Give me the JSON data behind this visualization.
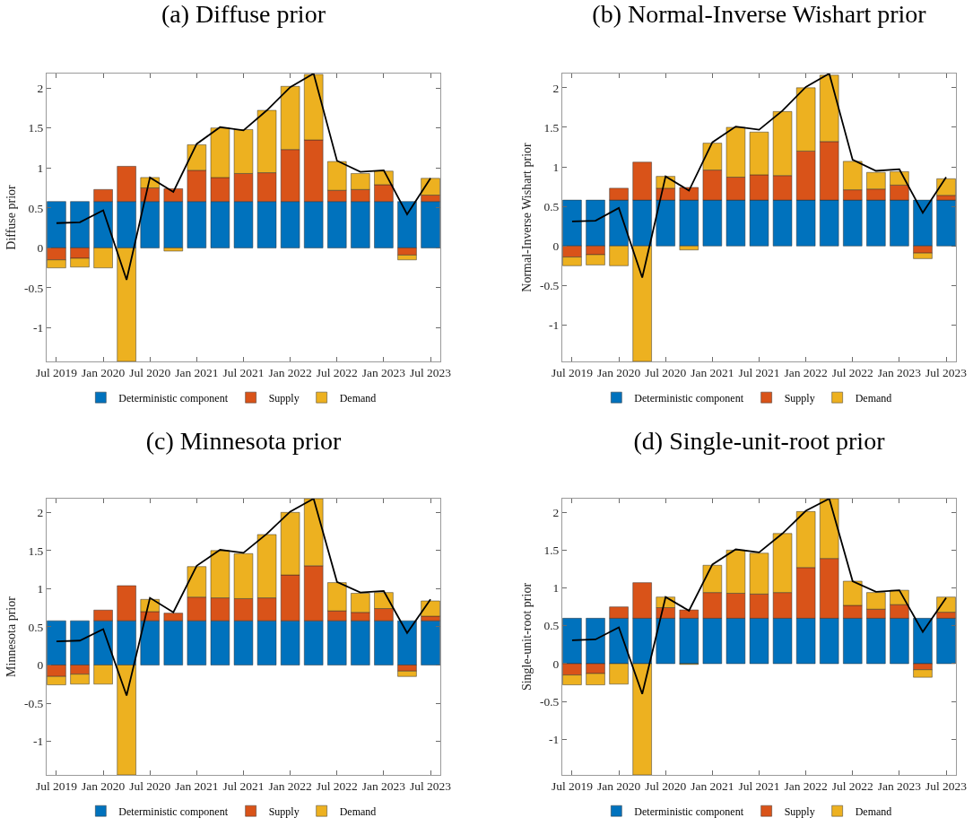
{
  "chart_data": [
    {
      "type": "bar",
      "title": "(a) Diffuse prior",
      "ylabel": "Diffuse prior",
      "categories": [
        "Jul 2019",
        null,
        "Jan 2020",
        null,
        "Jul 2020",
        null,
        "Jan 2021",
        null,
        "Jul 2021",
        null,
        "Jan 2022",
        null,
        "Jul 2022",
        null,
        "Jan 2023",
        null,
        "Jul 2023"
      ],
      "stacked": true,
      "legend": "bottom",
      "ylim": [
        -1.42,
        2.18
      ],
      "yticks": [
        -1,
        -0.5,
        0,
        0.5,
        1,
        1.5,
        2
      ],
      "series": [
        {
          "name": "Deterministic component",
          "color": "#0072bd",
          "values": [
            0.58,
            0.58,
            0.58,
            0.58,
            0.58,
            0.58,
            0.58,
            0.58,
            0.58,
            0.58,
            0.58,
            0.58,
            0.58,
            0.58,
            0.58,
            0.58,
            0.58
          ]
        },
        {
          "name": "Supply",
          "color": "#d95319",
          "values": [
            -0.15,
            -0.13,
            0.15,
            0.44,
            0.17,
            0.16,
            0.39,
            0.3,
            0.35,
            0.36,
            0.65,
            0.77,
            0.14,
            0.15,
            0.21,
            -0.09,
            0.08
          ]
        },
        {
          "name": "Demand",
          "color": "#edb120",
          "values": [
            -0.1,
            -0.11,
            -0.25,
            -1.42,
            0.13,
            -0.04,
            0.32,
            0.62,
            0.55,
            0.78,
            0.79,
            0.82,
            0.36,
            0.2,
            0.17,
            -0.06,
            0.21
          ]
        },
        {
          "type": "line",
          "color": "#000000",
          "marker": "none",
          "values": [
            0.31,
            0.32,
            0.47,
            -0.4,
            0.88,
            0.7,
            1.3,
            1.51,
            1.47,
            1.72,
            2.01,
            2.18,
            1.09,
            0.95,
            0.97,
            0.42,
            0.87
          ]
        }
      ]
    },
    {
      "type": "bar",
      "title": "(b) Normal-Inverse Wishart prior",
      "ylabel": "Normal-Inverse Wishart prior",
      "categories": [
        "Jul 2019",
        null,
        "Jan 2020",
        null,
        "Jul 2020",
        null,
        "Jan 2021",
        null,
        "Jul 2021",
        null,
        "Jan 2022",
        null,
        "Jul 2022",
        null,
        "Jan 2023",
        null,
        "Jul 2023"
      ],
      "stacked": true,
      "legend": "bottom",
      "ylim": [
        -1.46,
        2.18
      ],
      "yticks": [
        -1,
        -0.5,
        0,
        0.5,
        1,
        1.5,
        2
      ],
      "series": [
        {
          "name": "Deterministic component",
          "color": "#0072bd",
          "values": [
            0.58,
            0.58,
            0.58,
            0.58,
            0.58,
            0.58,
            0.58,
            0.58,
            0.58,
            0.58,
            0.58,
            0.58,
            0.58,
            0.58,
            0.58,
            0.58,
            0.58
          ]
        },
        {
          "name": "Supply",
          "color": "#d95319",
          "values": [
            -0.14,
            -0.11,
            0.15,
            0.48,
            0.15,
            0.16,
            0.38,
            0.29,
            0.32,
            0.31,
            0.62,
            0.74,
            0.13,
            0.14,
            0.19,
            -0.09,
            0.06
          ]
        },
        {
          "name": "Demand",
          "color": "#edb120",
          "values": [
            -0.11,
            -0.13,
            -0.25,
            -1.46,
            0.15,
            -0.05,
            0.34,
            0.63,
            0.54,
            0.81,
            0.8,
            0.84,
            0.36,
            0.21,
            0.17,
            -0.07,
            0.21
          ]
        },
        {
          "type": "line",
          "color": "#000000",
          "marker": "none",
          "values": [
            0.31,
            0.32,
            0.48,
            -0.4,
            0.88,
            0.7,
            1.31,
            1.51,
            1.47,
            1.71,
            2.01,
            2.18,
            1.09,
            0.95,
            0.97,
            0.42,
            0.87
          ]
        }
      ]
    },
    {
      "type": "bar",
      "title": "(c) Minnesota prior",
      "ylabel": "Minnesota prior",
      "categories": [
        "Jul 2019",
        null,
        "Jan 2020",
        null,
        "Jul 2020",
        null,
        "Jan 2021",
        null,
        "Jul 2021",
        null,
        "Jan 2022",
        null,
        "Jul 2022",
        null,
        "Jan 2023",
        null,
        "Jul 2023"
      ],
      "stacked": true,
      "legend": "bottom",
      "ylim": [
        -1.44,
        2.18
      ],
      "yticks": [
        -1,
        -0.5,
        0,
        0.5,
        1,
        1.5,
        2
      ],
      "series": [
        {
          "name": "Deterministic component",
          "color": "#0072bd",
          "values": [
            0.58,
            0.58,
            0.58,
            0.58,
            0.58,
            0.58,
            0.58,
            0.58,
            0.58,
            0.58,
            0.58,
            0.58,
            0.58,
            0.58,
            0.58,
            0.58,
            0.58
          ]
        },
        {
          "name": "Supply",
          "color": "#d95319",
          "values": [
            -0.15,
            -0.12,
            0.14,
            0.46,
            0.12,
            0.1,
            0.31,
            0.3,
            0.29,
            0.3,
            0.6,
            0.72,
            0.13,
            0.11,
            0.16,
            -0.08,
            0.06
          ]
        },
        {
          "name": "Demand",
          "color": "#edb120",
          "values": [
            -0.11,
            -0.13,
            -0.25,
            -1.44,
            0.16,
            null,
            0.4,
            0.62,
            0.59,
            0.83,
            0.82,
            0.88,
            0.37,
            0.25,
            0.21,
            -0.07,
            0.2
          ]
        },
        {
          "type": "line",
          "color": "#000000",
          "marker": "none",
          "values": [
            0.31,
            0.32,
            0.47,
            -0.4,
            0.88,
            0.69,
            1.3,
            1.51,
            1.47,
            1.72,
            2.01,
            2.18,
            1.09,
            0.95,
            0.97,
            0.42,
            0.86
          ]
        }
      ]
    },
    {
      "type": "bar",
      "title": "(d) Single-unit-root prior",
      "ylabel": "Single-unit-root prior",
      "categories": [
        "Jul 2019",
        null,
        "Jan 2020",
        null,
        "Jul 2020",
        null,
        "Jan 2021",
        null,
        "Jul 2021",
        null,
        "Jan 2022",
        null,
        "Jul 2022",
        null,
        "Jan 2023",
        null,
        "Jul 2023"
      ],
      "stacked": true,
      "legend": "bottom",
      "ylim": [
        -1.47,
        2.18
      ],
      "yticks": [
        -1,
        -0.5,
        0,
        0.5,
        1,
        1.5,
        2
      ],
      "series": [
        {
          "name": "Deterministic component",
          "color": "#0072bd",
          "values": [
            0.6,
            0.6,
            0.6,
            0.6,
            0.6,
            0.6,
            0.6,
            0.6,
            0.6,
            0.6,
            0.6,
            0.6,
            0.6,
            0.6,
            0.6,
            0.6,
            0.6
          ]
        },
        {
          "name": "Supply",
          "color": "#d95319",
          "values": [
            -0.15,
            -0.13,
            0.15,
            0.47,
            0.14,
            0.11,
            0.34,
            0.33,
            0.32,
            0.34,
            0.67,
            0.79,
            0.17,
            0.12,
            0.18,
            -0.08,
            0.08
          ]
        },
        {
          "name": "Demand",
          "color": "#edb120",
          "values": [
            -0.13,
            -0.15,
            -0.27,
            -1.47,
            0.14,
            -0.01,
            0.36,
            0.57,
            0.54,
            0.78,
            0.74,
            0.79,
            0.32,
            0.22,
            0.19,
            -0.1,
            0.2
          ]
        },
        {
          "type": "line",
          "color": "#000000",
          "marker": "none",
          "values": [
            0.31,
            0.32,
            0.48,
            -0.4,
            0.88,
            0.7,
            1.31,
            1.51,
            1.47,
            1.72,
            2.02,
            2.18,
            1.09,
            0.95,
            0.97,
            0.42,
            0.87
          ]
        }
      ]
    }
  ]
}
